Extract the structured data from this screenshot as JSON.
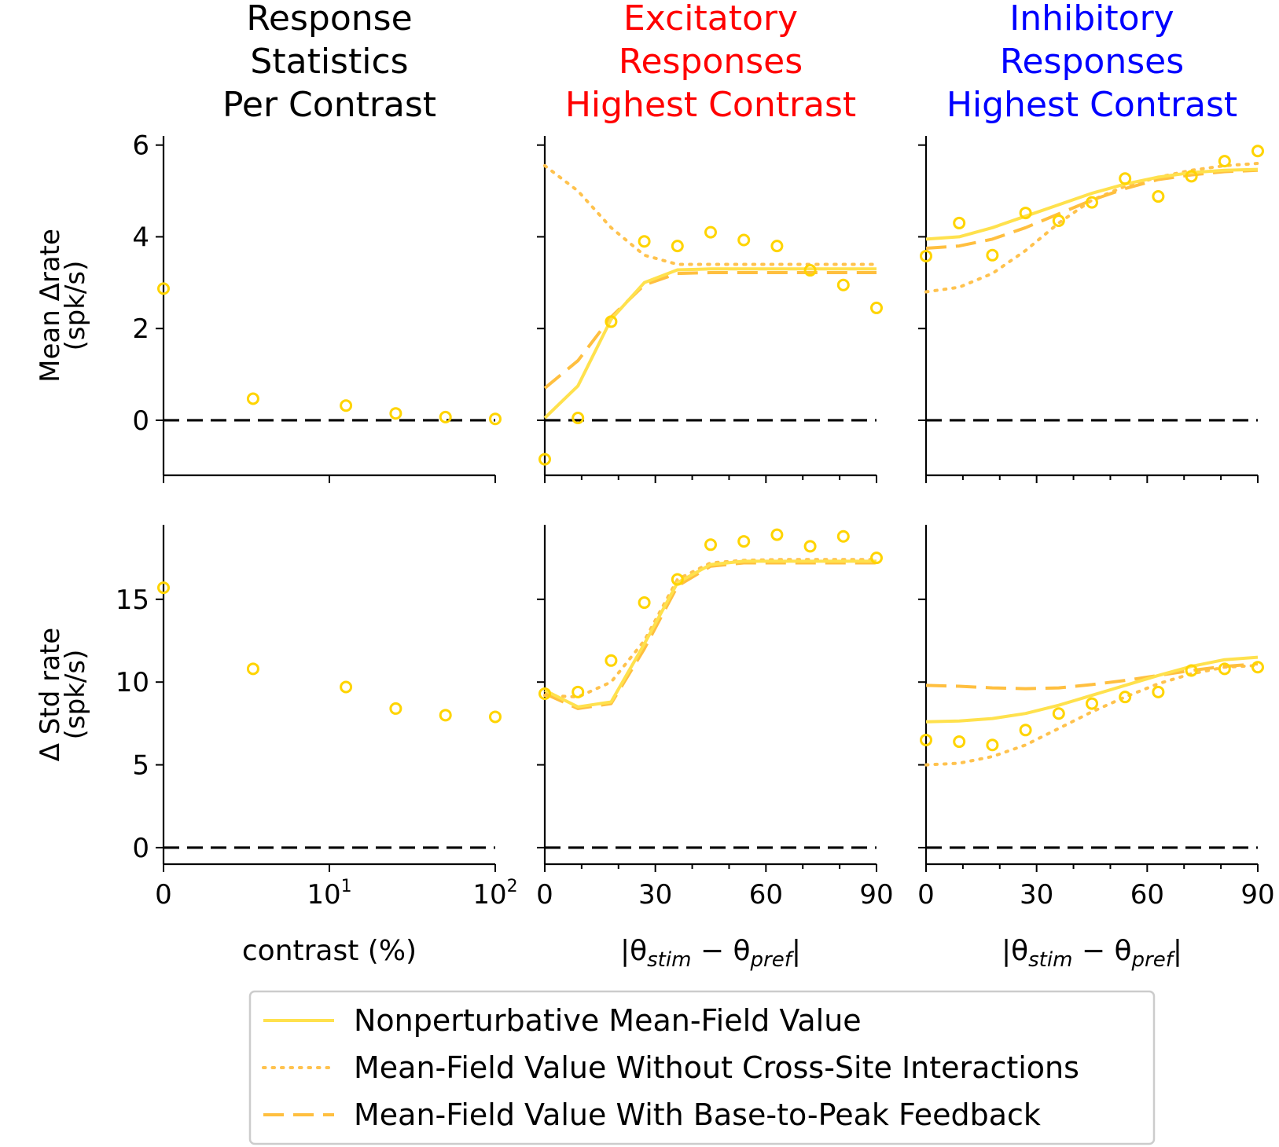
{
  "colors": {
    "model_solid": "#ffe14d",
    "model_dotted": "#ffc24d",
    "model_dashed": "#ffbf3f",
    "data_points": "#ffd400",
    "zero_line": "#000000",
    "title_black": "#000000",
    "title_red": "#ff0000",
    "title_blue": "#0000ff"
  },
  "legend": {
    "items": [
      {
        "label": "Nonperturbative Mean-Field Value",
        "style": "solid"
      },
      {
        "label": "Mean-Field Value Without Cross-Site Interactions",
        "style": "dotted"
      },
      {
        "label": "Mean-Field Value With Base-to-Peak Feedback",
        "style": "dashed"
      }
    ]
  },
  "chart_data": [
    {
      "type": "scatter",
      "title": [
        "Response",
        "Statistics",
        "Per Contrast"
      ],
      "title_color": "black",
      "ylabel": [
        "Mean Δrate",
        "(spk/s)"
      ],
      "xlabel": "",
      "x_scale": "symlog",
      "xlim": [
        0,
        100
      ],
      "ylim": [
        -1.2,
        6.2
      ],
      "yticks": [
        0,
        2,
        4,
        6
      ],
      "ytick_labels": [
        "0",
        "2",
        "4",
        "6"
      ],
      "zero_line": true,
      "points": {
        "x": [
          0,
          6,
          14,
          25,
          45,
          100
        ],
        "y": [
          2.87,
          0.47,
          0.32,
          0.15,
          0.07,
          0.03
        ]
      },
      "series": []
    },
    {
      "type": "line",
      "title": [
        "Excitatory",
        "Responses",
        "Highest Contrast"
      ],
      "title_color": "red",
      "xlabel": "",
      "xlim": [
        0,
        90
      ],
      "ylim": [
        -1.2,
        6.2
      ],
      "yticks": [
        0,
        2,
        4,
        6
      ],
      "zero_line": true,
      "points": {
        "x": [
          0,
          9,
          18,
          27,
          36,
          45,
          54,
          63,
          72,
          81,
          90
        ],
        "y": [
          -0.85,
          0.05,
          2.15,
          3.9,
          3.8,
          4.1,
          3.93,
          3.8,
          3.27,
          2.95,
          2.45
        ]
      },
      "series": [
        {
          "style": "dotted",
          "x": [
            0,
            9,
            18,
            27,
            36,
            45,
            54,
            63,
            72,
            81,
            90
          ],
          "y": [
            5.55,
            5.0,
            4.2,
            3.6,
            3.4,
            3.4,
            3.4,
            3.4,
            3.4,
            3.4,
            3.4
          ]
        },
        {
          "style": "dashed",
          "x": [
            0,
            9,
            18,
            27,
            36,
            45,
            54,
            63,
            72,
            81,
            90
          ],
          "y": [
            0.7,
            1.3,
            2.25,
            2.95,
            3.2,
            3.22,
            3.22,
            3.22,
            3.22,
            3.22,
            3.22
          ]
        },
        {
          "style": "solid",
          "x": [
            0,
            9,
            18,
            27,
            36,
            45,
            54,
            63,
            72,
            81,
            90
          ],
          "y": [
            0.05,
            0.75,
            2.2,
            3.0,
            3.28,
            3.3,
            3.3,
            3.3,
            3.3,
            3.3,
            3.3
          ]
        }
      ]
    },
    {
      "type": "line",
      "title": [
        "Inhibitory",
        "Responses",
        "Highest Contrast"
      ],
      "title_color": "blue",
      "xlabel": "",
      "xlim": [
        0,
        90
      ],
      "ylim": [
        -1.2,
        6.2
      ],
      "yticks": [
        0,
        2,
        4,
        6
      ],
      "zero_line": true,
      "points": {
        "x": [
          0,
          9,
          18,
          27,
          36,
          45,
          54,
          63,
          72,
          81,
          90
        ],
        "y": [
          3.58,
          4.3,
          3.6,
          4.52,
          4.35,
          4.75,
          5.27,
          4.88,
          5.32,
          5.65,
          5.87
        ]
      },
      "series": [
        {
          "style": "dotted",
          "x": [
            0,
            9,
            18,
            27,
            36,
            45,
            54,
            63,
            72,
            81,
            90
          ],
          "y": [
            2.8,
            2.9,
            3.2,
            3.7,
            4.3,
            4.8,
            5.1,
            5.3,
            5.45,
            5.55,
            5.6
          ]
        },
        {
          "style": "dashed",
          "x": [
            0,
            9,
            18,
            27,
            36,
            45,
            54,
            63,
            72,
            81,
            90
          ],
          "y": [
            3.75,
            3.8,
            3.95,
            4.2,
            4.5,
            4.8,
            5.05,
            5.25,
            5.35,
            5.42,
            5.45
          ]
        },
        {
          "style": "solid",
          "x": [
            0,
            9,
            18,
            27,
            36,
            45,
            54,
            63,
            72,
            81,
            90
          ],
          "y": [
            3.95,
            4.0,
            4.2,
            4.45,
            4.7,
            4.95,
            5.15,
            5.3,
            5.4,
            5.45,
            5.47
          ]
        }
      ]
    },
    {
      "type": "scatter",
      "ylabel": [
        "Δ Std rate",
        "(spk/s)"
      ],
      "xlabel": "contrast (%)",
      "x_scale": "symlog",
      "xlim": [
        0,
        100
      ],
      "xtick_labels": [
        "0",
        "10",
        "10"
      ],
      "xtick_sups": [
        "",
        "1",
        "2"
      ],
      "ylim": [
        -1,
        19.5
      ],
      "yticks": [
        0,
        5,
        10,
        15
      ],
      "ytick_labels": [
        "0",
        "5",
        "10",
        "15"
      ],
      "zero_line": true,
      "points": {
        "x": [
          0,
          6,
          14,
          25,
          45,
          100
        ],
        "y": [
          15.7,
          10.8,
          9.7,
          8.4,
          8.0,
          7.9
        ]
      },
      "series": []
    },
    {
      "type": "line",
      "xlabel": "|θstim − θpref|",
      "xlim": [
        0,
        90
      ],
      "xticks": [
        0,
        30,
        60,
        90
      ],
      "xtick_labels": [
        "0",
        "30",
        "60",
        "90"
      ],
      "ylim": [
        -1,
        19.5
      ],
      "yticks": [
        0,
        5,
        10,
        15
      ],
      "zero_line": true,
      "points": {
        "x": [
          0,
          9,
          18,
          27,
          36,
          45,
          54,
          63,
          72,
          81,
          90
        ],
        "y": [
          9.3,
          9.4,
          11.3,
          14.8,
          16.2,
          18.3,
          18.5,
          18.9,
          18.2,
          18.8,
          17.5
        ]
      },
      "series": [
        {
          "style": "dotted",
          "x": [
            0,
            9,
            18,
            27,
            36,
            45,
            54,
            63,
            72,
            81,
            90
          ],
          "y": [
            9.2,
            9.1,
            10.0,
            12.5,
            16.2,
            17.2,
            17.35,
            17.4,
            17.4,
            17.4,
            17.4
          ]
        },
        {
          "style": "dashed",
          "x": [
            0,
            9,
            18,
            27,
            36,
            45,
            54,
            63,
            72,
            81,
            90
          ],
          "y": [
            9.3,
            8.4,
            8.7,
            12.0,
            15.8,
            17.0,
            17.2,
            17.2,
            17.2,
            17.2,
            17.2
          ]
        },
        {
          "style": "solid",
          "x": [
            0,
            9,
            18,
            27,
            36,
            45,
            54,
            63,
            72,
            81,
            90
          ],
          "y": [
            9.5,
            8.5,
            8.8,
            12.3,
            16.0,
            17.1,
            17.3,
            17.3,
            17.3,
            17.3,
            17.3
          ]
        }
      ]
    },
    {
      "type": "line",
      "xlabel": "|θstim − θpref|",
      "xlim": [
        0,
        90
      ],
      "xticks": [
        0,
        30,
        60,
        90
      ],
      "xtick_labels": [
        "0",
        "30",
        "60",
        "90"
      ],
      "ylim": [
        -1,
        19.5
      ],
      "yticks": [
        0,
        5,
        10,
        15
      ],
      "zero_line": true,
      "points": {
        "x": [
          0,
          9,
          18,
          27,
          36,
          45,
          54,
          63,
          72,
          81,
          90
        ],
        "y": [
          6.5,
          6.4,
          6.2,
          7.1,
          8.1,
          8.7,
          9.1,
          9.4,
          10.7,
          10.8,
          10.9
        ]
      },
      "series": [
        {
          "style": "dotted",
          "x": [
            0,
            9,
            18,
            27,
            36,
            45,
            54,
            63,
            72,
            81,
            90
          ],
          "y": [
            5.0,
            5.1,
            5.5,
            6.2,
            7.2,
            8.2,
            9.1,
            9.9,
            10.5,
            10.9,
            11.0
          ]
        },
        {
          "style": "dashed",
          "x": [
            0,
            9,
            18,
            27,
            36,
            45,
            54,
            63,
            72,
            81,
            90
          ],
          "y": [
            9.8,
            9.75,
            9.65,
            9.6,
            9.65,
            9.85,
            10.1,
            10.4,
            10.7,
            10.95,
            11.1
          ]
        },
        {
          "style": "solid",
          "x": [
            0,
            9,
            18,
            27,
            36,
            45,
            54,
            63,
            72,
            81,
            90
          ],
          "y": [
            7.6,
            7.65,
            7.8,
            8.1,
            8.6,
            9.2,
            9.8,
            10.4,
            10.95,
            11.35,
            11.5
          ]
        }
      ]
    }
  ]
}
